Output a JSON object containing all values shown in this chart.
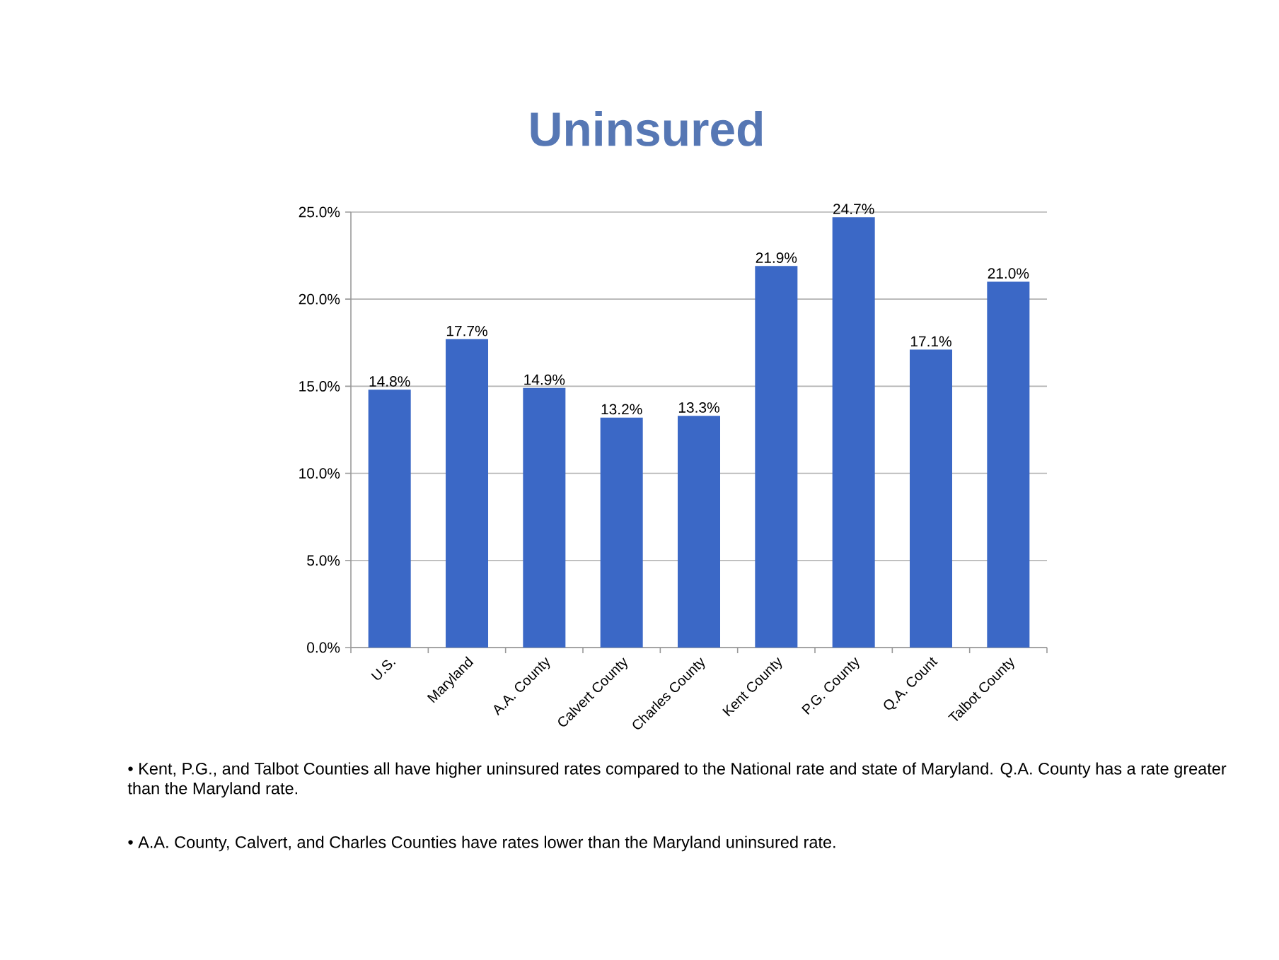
{
  "chart_data": {
    "type": "bar",
    "title": "Uninsured",
    "categories": [
      "U.S.",
      "Maryland",
      "A.A. County",
      "Calvert County",
      "Charles County",
      "Kent County",
      "P.G. County",
      "Q.A. Count",
      "Talbot County"
    ],
    "values": [
      14.8,
      17.7,
      14.9,
      13.2,
      13.3,
      21.9,
      24.7,
      17.1,
      21.0
    ],
    "value_labels": [
      "14.8%",
      "17.7%",
      "14.9%",
      "13.2%",
      "13.3%",
      "21.9%",
      "24.7%",
      "17.1%",
      "21.0%"
    ],
    "color": "#3b68c6",
    "ylim": [
      0,
      25
    ],
    "yticks": [
      {
        "value": 0,
        "label": "0.0%"
      },
      {
        "value": 5,
        "label": "5.0%"
      },
      {
        "value": 10,
        "label": "10.0%"
      },
      {
        "value": 15,
        "label": "15.0%"
      },
      {
        "value": 20,
        "label": "20.0%"
      },
      {
        "value": 25,
        "label": "25.0%"
      }
    ],
    "grid": "y",
    "annotations": [
      "• Kent, P.G., and Talbot Counties all have higher uninsured rates compared to the National rate and state of Maryland.  Q.A. County has a rate greater than the Maryland rate.",
      "• A.A. County, Calvert, and Charles Counties have rates lower than the Maryland uninsured rate."
    ]
  }
}
